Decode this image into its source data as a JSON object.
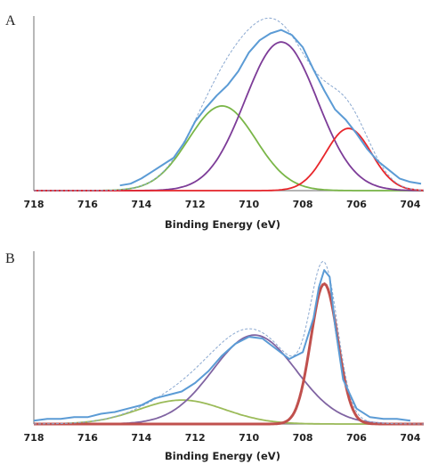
{
  "chart_data": [
    {
      "panel_label": "A",
      "type": "line",
      "xlabel": "Binding Energy (eV)",
      "ylabel": "",
      "xlim": [
        718,
        703.5
      ],
      "x_reversed": true,
      "ylim": [
        0,
        1
      ],
      "x_ticks": [
        "718",
        "716",
        "714",
        "712",
        "710",
        "708",
        "706",
        "704"
      ],
      "grid": false,
      "legend": "none",
      "components": [
        {
          "color": "#7ab648",
          "center": 711.0,
          "amplitude": 0.49,
          "sigma": 1.25
        },
        {
          "color": "#7d3c98",
          "center": 708.8,
          "amplitude": 0.86,
          "sigma": 1.35
        },
        {
          "color": "#e8262b",
          "center": 706.3,
          "amplitude": 0.36,
          "sigma": 0.85
        }
      ],
      "envelope_color": "#8aa8d0",
      "data_color": "#5b9bd5",
      "data": {
        "x": [
          714.8,
          714.4,
          714.0,
          713.6,
          713.2,
          712.8,
          712.4,
          712.0,
          711.6,
          711.2,
          710.8,
          710.4,
          710.0,
          709.6,
          709.2,
          708.8,
          708.4,
          708.0,
          707.6,
          707.2,
          706.8,
          706.4,
          706.0,
          705.6,
          705.2,
          704.8,
          704.4,
          704.0,
          703.6
        ],
        "y": [
          0.03,
          0.04,
          0.07,
          0.11,
          0.15,
          0.19,
          0.28,
          0.4,
          0.48,
          0.55,
          0.61,
          0.69,
          0.8,
          0.87,
          0.91,
          0.93,
          0.9,
          0.83,
          0.7,
          0.58,
          0.47,
          0.41,
          0.33,
          0.24,
          0.17,
          0.12,
          0.07,
          0.05,
          0.04
        ]
      }
    },
    {
      "panel_label": "B",
      "type": "line",
      "xlabel": "Binding Energy (eV)",
      "ylabel": "",
      "xlim": [
        718,
        703.5
      ],
      "x_reversed": true,
      "ylim": [
        0,
        1
      ],
      "x_ticks": [
        "718",
        "716",
        "714",
        "712",
        "710",
        "708",
        "706",
        "704"
      ],
      "grid": false,
      "legend": "none",
      "components": [
        {
          "color": "#9bbb59",
          "center": 712.5,
          "amplitude": 0.14,
          "sigma": 1.6
        },
        {
          "color": "#8064a2",
          "center": 709.8,
          "amplitude": 0.52,
          "sigma": 1.55
        },
        {
          "color": "#c0504d",
          "center": 707.2,
          "amplitude": 0.82,
          "sigma": 0.5
        }
      ],
      "envelope_color": "#8aa8d0",
      "data_color": "#5b9bd5",
      "data": {
        "x": [
          718.0,
          717.5,
          717.0,
          716.5,
          716.0,
          715.5,
          715.0,
          714.5,
          714.0,
          713.5,
          713.0,
          712.5,
          712.0,
          711.5,
          711.0,
          710.5,
          710.0,
          709.5,
          709.0,
          708.5,
          708.0,
          707.6,
          707.4,
          707.2,
          707.0,
          706.8,
          706.5,
          706.0,
          705.5,
          705.0,
          704.5,
          704.0
        ],
        "y": [
          0.02,
          0.03,
          0.03,
          0.04,
          0.04,
          0.06,
          0.07,
          0.09,
          0.11,
          0.15,
          0.17,
          0.19,
          0.24,
          0.31,
          0.4,
          0.47,
          0.51,
          0.5,
          0.44,
          0.38,
          0.42,
          0.62,
          0.8,
          0.9,
          0.86,
          0.58,
          0.26,
          0.09,
          0.04,
          0.03,
          0.03,
          0.02
        ]
      }
    }
  ]
}
